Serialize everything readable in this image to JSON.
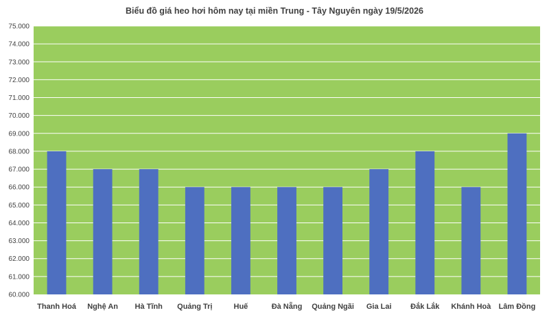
{
  "chart_data": {
    "type": "bar",
    "title": "Biểu đồ giá heo hơi hôm nay tại miền Trung - Tây Nguyên ngày 19/5/2026",
    "xlabel": "",
    "ylabel": "",
    "categories": [
      "Thanh Hoá",
      "Nghệ An",
      "Hà Tĩnh",
      "Quảng Trị",
      "Huế",
      "Đà Nẵng",
      "Quảng Ngãi",
      "Gia Lai",
      "Đắk Lắk",
      "Khánh Hoà",
      "Lâm Đồng"
    ],
    "values": [
      68000,
      67000,
      67000,
      66000,
      66000,
      66000,
      66000,
      67000,
      68000,
      66000,
      69000
    ],
    "ylim": [
      60000,
      75000
    ],
    "yticks": [
      60000,
      61000,
      62000,
      63000,
      64000,
      65000,
      66000,
      67000,
      68000,
      69000,
      70000,
      71000,
      72000,
      73000,
      74000,
      75000
    ],
    "ytick_labels": [
      "60.000",
      "61.000",
      "62.000",
      "63.000",
      "64.000",
      "65.000",
      "66.000",
      "67.000",
      "68.000",
      "69.000",
      "70.000",
      "71.000",
      "72.000",
      "73.000",
      "74.000",
      "75.000"
    ],
    "grid": true,
    "legend": "none",
    "colors": {
      "bar": "#4E6FC0",
      "plot_background": "#9ACD5E",
      "gridline": "#FFFFFF"
    }
  }
}
